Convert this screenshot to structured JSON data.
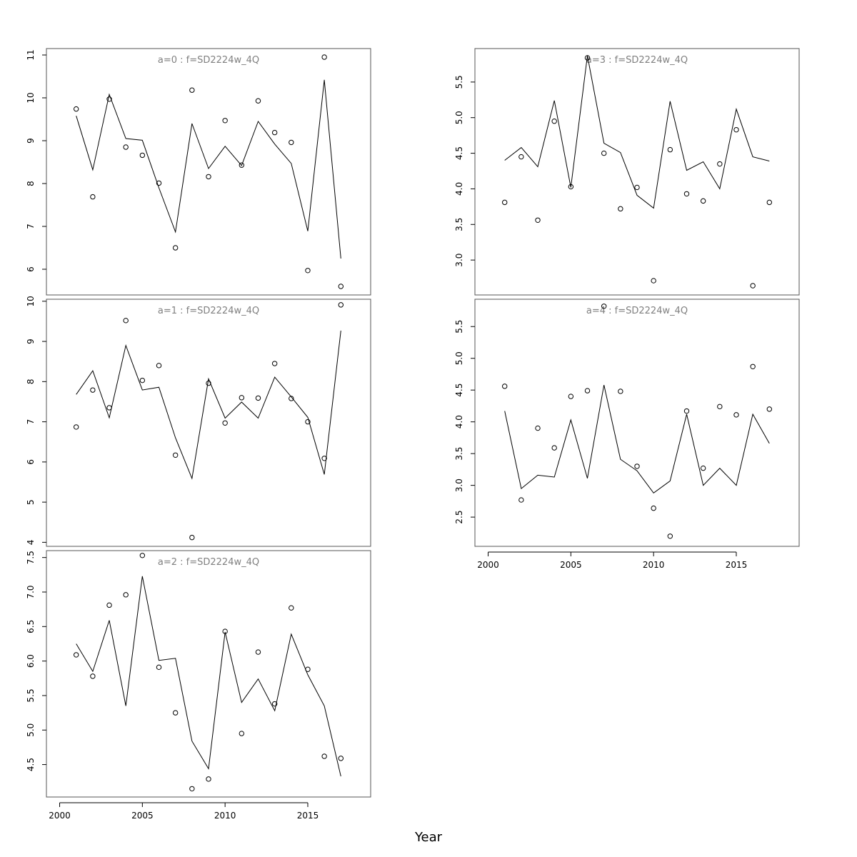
{
  "figure": {
    "xlabel": "Year"
  },
  "chart_data": [
    {
      "type": "line",
      "title": "a=0  :  f=SD2224w_4Q",
      "xlabel": "",
      "ylabel": "",
      "xlim": [
        1999.2,
        2018.8
      ],
      "ylim": [
        5.4,
        11.15
      ],
      "yticks": [
        6,
        7,
        8,
        9,
        10,
        11
      ],
      "xticks": [],
      "grid": false,
      "x": [
        2001,
        2002,
        2003,
        2004,
        2005,
        2006,
        2007,
        2008,
        2009,
        2010,
        2011,
        2012,
        2013,
        2014,
        2015,
        2016,
        2017
      ],
      "series": [
        {
          "style": "line",
          "values": [
            9.58,
            8.32,
            10.08,
            9.05,
            9.01,
            7.9,
            6.87,
            9.4,
            8.35,
            8.87,
            8.42,
            9.45,
            8.92,
            8.47,
            6.89,
            10.42,
            6.25
          ]
        },
        {
          "style": "points",
          "values": [
            9.74,
            7.69,
            9.97,
            8.85,
            8.66,
            8.01,
            6.5,
            10.18,
            8.16,
            9.47,
            8.43,
            9.93,
            9.19,
            8.96,
            5.97,
            10.95,
            5.6
          ]
        }
      ]
    },
    {
      "type": "line",
      "title": "a=1  :  f=SD2224w_4Q",
      "xlabel": "",
      "ylabel": "",
      "xlim": [
        1999.2,
        2018.8
      ],
      "ylim": [
        3.9,
        10.05
      ],
      "yticks": [
        4,
        5,
        6,
        7,
        8,
        9,
        10
      ],
      "xticks": [],
      "grid": false,
      "x": [
        2001,
        2002,
        2003,
        2004,
        2005,
        2006,
        2007,
        2008,
        2009,
        2010,
        2011,
        2012,
        2013,
        2014,
        2015,
        2016,
        2017
      ],
      "series": [
        {
          "style": "line",
          "values": [
            7.68,
            8.27,
            7.1,
            8.9,
            7.79,
            7.86,
            6.6,
            5.59,
            8.07,
            7.09,
            7.49,
            7.09,
            8.11,
            7.62,
            7.11,
            5.69,
            9.27
          ]
        },
        {
          "style": "points",
          "values": [
            6.87,
            7.79,
            7.35,
            9.52,
            8.03,
            8.4,
            6.17,
            4.12,
            7.96,
            6.97,
            7.6,
            7.59,
            8.45,
            7.58,
            7.0,
            6.09,
            9.91
          ]
        }
      ]
    },
    {
      "type": "line",
      "title": "a=2  :  f=SD2224w_4Q",
      "xlabel": "",
      "ylabel": "",
      "xlim": [
        1999.2,
        2018.8
      ],
      "ylim": [
        4.03,
        7.6
      ],
      "yticks": [
        4.5,
        5.0,
        5.5,
        6.0,
        6.5,
        7.0,
        7.5
      ],
      "xticks": [
        2000,
        2005,
        2010,
        2015
      ],
      "grid": false,
      "x": [
        2001,
        2002,
        2003,
        2004,
        2005,
        2006,
        2007,
        2008,
        2009,
        2010,
        2011,
        2012,
        2013,
        2014,
        2015,
        2016,
        2017
      ],
      "series": [
        {
          "style": "line",
          "values": [
            6.25,
            5.85,
            6.59,
            5.35,
            7.23,
            6.01,
            6.04,
            4.84,
            4.44,
            6.42,
            5.4,
            5.74,
            5.28,
            6.39,
            5.8,
            5.35,
            4.33
          ]
        },
        {
          "style": "points",
          "values": [
            6.09,
            5.78,
            6.81,
            6.96,
            7.53,
            5.91,
            5.25,
            4.15,
            4.29,
            6.43,
            4.95,
            6.13,
            5.38,
            6.77,
            5.88,
            4.62,
            4.59
          ]
        }
      ]
    },
    {
      "type": "line",
      "title": "a=3  :  f=SD2224w_4Q",
      "xlabel": "",
      "ylabel": "",
      "xlim": [
        1999.2,
        2018.8
      ],
      "ylim": [
        2.51,
        5.97
      ],
      "yticks": [
        3.0,
        3.5,
        4.0,
        4.5,
        5.0,
        5.5
      ],
      "xticks": [],
      "grid": false,
      "x": [
        2001,
        2002,
        2003,
        2004,
        2005,
        2006,
        2007,
        2008,
        2009,
        2010,
        2011,
        2012,
        2013,
        2014,
        2015,
        2016,
        2017
      ],
      "series": [
        {
          "style": "line",
          "values": [
            4.4,
            4.58,
            4.31,
            5.24,
            4.02,
            5.87,
            4.64,
            4.51,
            3.91,
            3.73,
            5.23,
            4.26,
            4.38,
            4.0,
            5.12,
            4.45,
            4.39
          ]
        },
        {
          "style": "points",
          "values": [
            3.81,
            4.45,
            3.56,
            4.95,
            4.03,
            5.84,
            4.5,
            3.72,
            4.02,
            2.71,
            4.55,
            3.93,
            3.83,
            4.35,
            4.83,
            2.64,
            3.81
          ]
        }
      ]
    },
    {
      "type": "line",
      "title": "a=4  :  f=SD2224w_4Q",
      "xlabel": "",
      "ylabel": "",
      "xlim": [
        1999.2,
        2018.8
      ],
      "ylim": [
        2.04,
        5.93
      ],
      "yticks": [
        2.5,
        3.0,
        3.5,
        4.0,
        4.5,
        5.0,
        5.5
      ],
      "xticks": [
        2000,
        2005,
        2010,
        2015
      ],
      "grid": false,
      "x": [
        2001,
        2002,
        2003,
        2004,
        2005,
        2006,
        2007,
        2008,
        2009,
        2010,
        2011,
        2012,
        2013,
        2014,
        2015,
        2016,
        2017
      ],
      "series": [
        {
          "style": "line",
          "values": [
            4.17,
            2.95,
            3.16,
            3.13,
            4.03,
            3.11,
            4.58,
            3.41,
            3.23,
            2.88,
            3.07,
            4.12,
            3.0,
            3.27,
            3.0,
            4.12,
            3.66
          ]
        },
        {
          "style": "points",
          "values": [
            4.56,
            2.77,
            3.9,
            3.59,
            4.4,
            4.49,
            5.82,
            4.48,
            3.3,
            2.64,
            2.2,
            4.17,
            3.27,
            4.24,
            4.11,
            4.87,
            4.2
          ]
        }
      ]
    }
  ]
}
